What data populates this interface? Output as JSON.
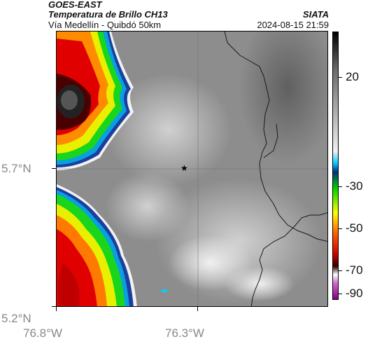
{
  "header": {
    "satellite": "GOES-EAST",
    "product": "Temperatura de Brillo CH13",
    "route": "Vía Medellín - Quibdó 50km",
    "agency": "SIATA",
    "datetime": "2024-08-15 21:59"
  },
  "axes": {
    "lat_labels": [
      "5.7°N",
      "5.2°N"
    ],
    "lon_labels": [
      "76.8°W",
      "76.3°W"
    ]
  },
  "colorbar": {
    "tick_labels": [
      "20",
      "-30",
      "-50",
      "-70",
      "-90"
    ],
    "stops": [
      {
        "value": 38,
        "color": "#000000"
      },
      {
        "value": 20,
        "color": "#6a6a6a"
      },
      {
        "value": -20,
        "color": "#f0f0f0"
      },
      {
        "value": -26,
        "color": "#00c8ff"
      },
      {
        "value": -30,
        "color": "#002d7a"
      },
      {
        "value": -38,
        "color": "#00d000"
      },
      {
        "value": -50,
        "color": "#ffff00"
      },
      {
        "value": -60,
        "color": "#ff6000"
      },
      {
        "value": -70,
        "color": "#d00000"
      },
      {
        "value": -76,
        "color": "#300000"
      },
      {
        "value": -80,
        "color": "#ffffff"
      },
      {
        "value": -84,
        "color": "#d070d0"
      },
      {
        "value": -92,
        "color": "#800080"
      }
    ]
  },
  "map_features": {
    "marker_symbol": "★",
    "marker_meaning": "",
    "gridlines": true
  },
  "colors": {
    "ground_gray": "#8d8d8d",
    "border_line": "#1a1a1a"
  }
}
